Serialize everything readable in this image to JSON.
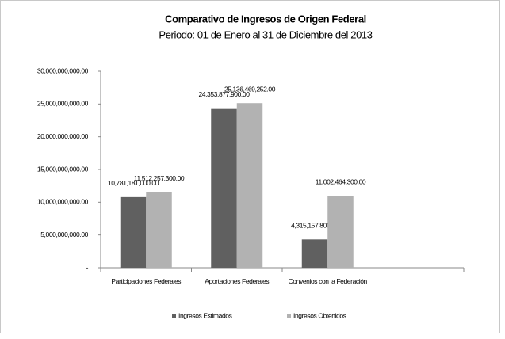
{
  "chart_data": {
    "type": "bar",
    "title": "Comparativo de Ingresos de Origen Federal",
    "subtitle": "Periodo: 01 de Enero al 31 de Diciembre del 2013",
    "categories": [
      "Participaciones Federales",
      "Aportaciones Federales",
      "Convenios con la Federación",
      null
    ],
    "series": [
      {
        "name": "Ingresos Estimados",
        "color": "#606060",
        "values": [
          10781181000,
          24353877900,
          4315157800,
          null
        ],
        "value_labels": [
          "10,781,181,000.00",
          "24,353,877,900.00",
          "4,315,157,800.00",
          null
        ]
      },
      {
        "name": "Ingresos Obtenidos",
        "color": "#b2b2b2",
        "values": [
          11512257300,
          25136469252,
          11002464300,
          null
        ],
        "value_labels": [
          "11,512,257,300.00",
          "25,136,469,252.00",
          "11,002,464,300.00",
          null
        ]
      }
    ],
    "ylim": [
      0,
      30000000000
    ],
    "yticks": [
      {
        "value": 0,
        "label": "-"
      },
      {
        "value": 5000000000,
        "label": "5,000,000,000.00"
      },
      {
        "value": 10000000000,
        "label": "10,000,000,000.00"
      },
      {
        "value": 15000000000,
        "label": "15,000,000,000.00"
      },
      {
        "value": 20000000000,
        "label": "20,000,000,000.00"
      },
      {
        "value": 25000000000,
        "label": "25,000,000,000.00"
      },
      {
        "value": 30000000000,
        "label": "30,000,000,000.00"
      }
    ],
    "legend": "bottom"
  }
}
